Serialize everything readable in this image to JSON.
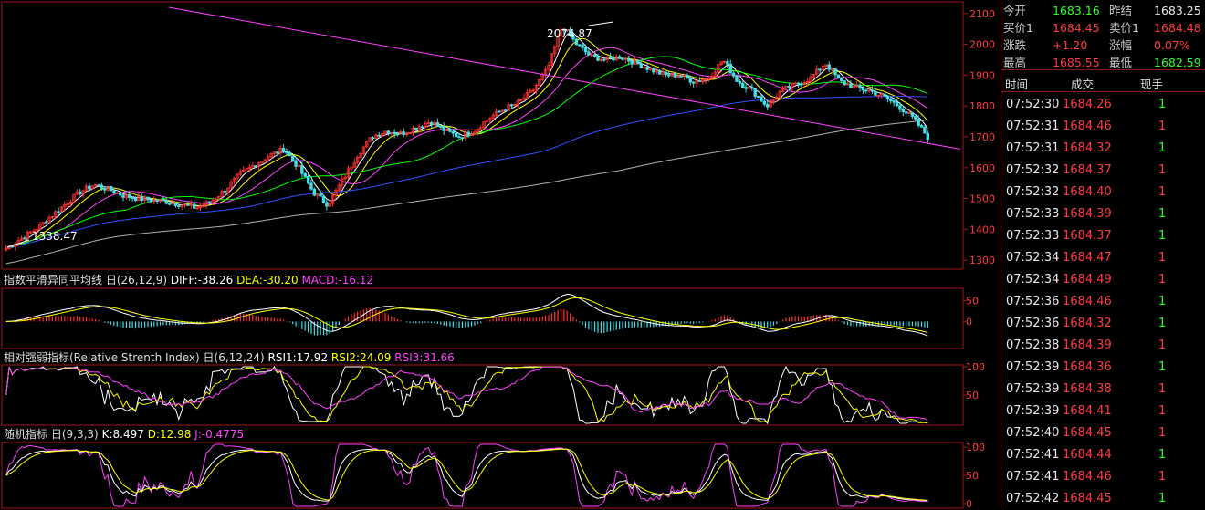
{
  "quote": {
    "rows": [
      [
        {
          "label": "今开",
          "value": "1683.16",
          "color": "green"
        },
        {
          "label": "昨结",
          "value": "1683.25",
          "color": "white"
        }
      ],
      [
        {
          "label": "买价1",
          "value": "1684.45",
          "color": "red"
        },
        {
          "label": "卖价1",
          "value": "1684.48",
          "color": "red"
        }
      ],
      [
        {
          "label": "涨跌",
          "value": "+1.20",
          "color": "red"
        },
        {
          "label": "涨幅",
          "value": "0.07%",
          "color": "red"
        }
      ],
      [
        {
          "label": "最高",
          "value": "1685.55",
          "color": "red"
        },
        {
          "label": "最低",
          "value": "1682.59",
          "color": "green"
        }
      ]
    ]
  },
  "trades": {
    "headers": [
      "时间",
      "成交",
      "现手"
    ],
    "rows": [
      {
        "time": "07:52:30",
        "price": "1684.26",
        "vol": "1",
        "dir": "buy"
      },
      {
        "time": "07:52:31",
        "price": "1684.46",
        "vol": "1",
        "dir": "sell"
      },
      {
        "time": "07:52:31",
        "price": "1684.32",
        "vol": "1",
        "dir": "buy"
      },
      {
        "time": "07:52:32",
        "price": "1684.37",
        "vol": "1",
        "dir": "sell"
      },
      {
        "time": "07:52:32",
        "price": "1684.40",
        "vol": "1",
        "dir": "sell"
      },
      {
        "time": "07:52:33",
        "price": "1684.39",
        "vol": "1",
        "dir": "buy"
      },
      {
        "time": "07:52:33",
        "price": "1684.37",
        "vol": "1",
        "dir": "buy"
      },
      {
        "time": "07:52:34",
        "price": "1684.47",
        "vol": "1",
        "dir": "sell"
      },
      {
        "time": "07:52:34",
        "price": "1684.49",
        "vol": "1",
        "dir": "sell"
      },
      {
        "time": "07:52:36",
        "price": "1684.46",
        "vol": "1",
        "dir": "buy"
      },
      {
        "time": "07:52:36",
        "price": "1684.32",
        "vol": "1",
        "dir": "buy"
      },
      {
        "time": "07:52:38",
        "price": "1684.39",
        "vol": "1",
        "dir": "sell"
      },
      {
        "time": "07:52:39",
        "price": "1684.36",
        "vol": "1",
        "dir": "buy"
      },
      {
        "time": "07:52:39",
        "price": "1684.38",
        "vol": "1",
        "dir": "sell"
      },
      {
        "time": "07:52:39",
        "price": "1684.41",
        "vol": "1",
        "dir": "sell"
      },
      {
        "time": "07:52:40",
        "price": "1684.45",
        "vol": "1",
        "dir": "sell"
      },
      {
        "time": "07:52:41",
        "price": "1684.44",
        "vol": "1",
        "dir": "buy"
      },
      {
        "time": "07:52:41",
        "price": "1684.46",
        "vol": "1",
        "dir": "sell"
      },
      {
        "time": "07:52:42",
        "price": "1684.45",
        "vol": "1",
        "dir": "buy"
      }
    ]
  },
  "chart_data": [
    {
      "type": "candlestick",
      "panel": "price",
      "ylim": [
        1280,
        2120
      ],
      "yticks": [
        1300,
        1400,
        1500,
        1600,
        1700,
        1800,
        1900,
        2000,
        2100
      ],
      "annotations": [
        {
          "text": "2074.87",
          "kind": "high"
        },
        {
          "text": "1338.47",
          "kind": "low"
        }
      ],
      "close_path": [
        1338,
        1370,
        1400,
        1440,
        1480,
        1520,
        1545,
        1530,
        1510,
        1500,
        1495,
        1490,
        1480,
        1470,
        1490,
        1530,
        1580,
        1610,
        1640,
        1660,
        1600,
        1520,
        1480,
        1560,
        1640,
        1700,
        1720,
        1710,
        1730,
        1750,
        1720,
        1700,
        1720,
        1760,
        1790,
        1810,
        1850,
        1920,
        2060,
        2000,
        1960,
        1950,
        1960,
        1940,
        1920,
        1900,
        1900,
        1880,
        1890,
        1950,
        1880,
        1850,
        1800,
        1850,
        1870,
        1890,
        1940,
        1880,
        1860,
        1850,
        1830,
        1800,
        1760,
        1700
      ],
      "ma_colors": [
        "#ffffff",
        "#ffff00",
        "#ff40ff",
        "#00ff00",
        "#3050ff",
        "#b0b0b0"
      ],
      "trendline": {
        "color": "#ff40ff"
      }
    },
    {
      "type": "line",
      "panel": "macd",
      "title": "指数平滑异同平均线",
      "params": "(26,12,9)",
      "series": [
        {
          "name": "DIFF",
          "value": "-38.26",
          "color": "#ffffff"
        },
        {
          "name": "DEA",
          "value": "-30.20",
          "color": "#ffff00"
        },
        {
          "name": "MACD",
          "value": "-16.12",
          "color": "#ff40ff"
        }
      ],
      "yticks": [
        50,
        0
      ],
      "ylim": [
        -60,
        75
      ]
    },
    {
      "type": "line",
      "panel": "rsi",
      "title": "相对强弱指标(Relative Strenth Index)",
      "params": "(6,12,24)",
      "series": [
        {
          "name": "RSI1",
          "value": "17.92",
          "color": "#ffffff"
        },
        {
          "name": "RSI2",
          "value": "24.09",
          "color": "#ffff00"
        },
        {
          "name": "RSI3",
          "value": "31.66",
          "color": "#ff40ff"
        }
      ],
      "yticks": [
        100,
        50
      ],
      "ylim": [
        0,
        100
      ]
    },
    {
      "type": "line",
      "panel": "kdj",
      "title": "随机指标",
      "params": "(9,3,3)",
      "series": [
        {
          "name": "K",
          "value": "8.497",
          "color": "#ffffff"
        },
        {
          "name": "D",
          "value": "12.98",
          "color": "#ffff00"
        },
        {
          "name": "J",
          "value": "-0.4775",
          "color": "#ff40ff"
        }
      ],
      "yticks": [
        100,
        50,
        0
      ],
      "ylim": [
        -5,
        105
      ]
    }
  ]
}
